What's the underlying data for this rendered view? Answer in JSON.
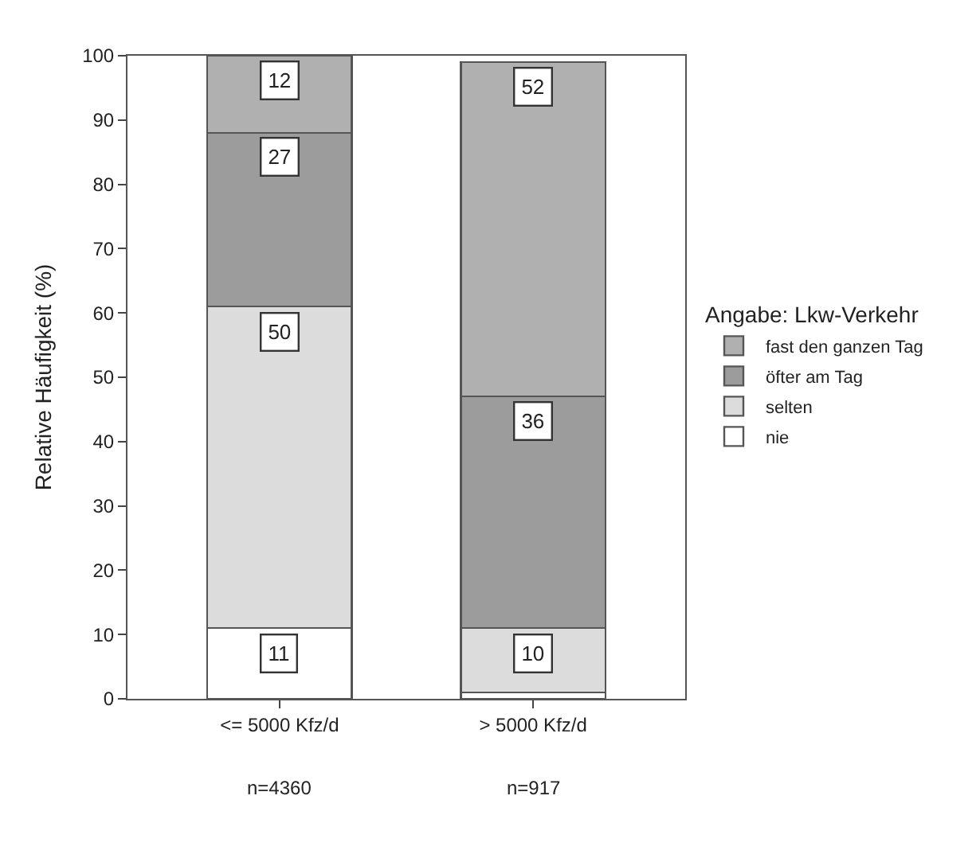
{
  "chart_data": {
    "type": "bar",
    "stacked": true,
    "ylabel": "Relative Häufigkeit (%)",
    "legend_title": "Angabe: Lkw-Verkehr",
    "categories": [
      "<= 5000 Kfz/d",
      "> 5000 Kfz/d"
    ],
    "series": [
      {
        "name": "nie",
        "color": "#ffffff",
        "values": [
          11,
          1
        ],
        "value_labels": [
          "11",
          null
        ]
      },
      {
        "name": "selten",
        "color": "#dcdcdc",
        "values": [
          50,
          10
        ],
        "value_labels": [
          "50",
          "10"
        ]
      },
      {
        "name": "öfter am Tag",
        "color": "#9c9c9c",
        "values": [
          27,
          36
        ],
        "value_labels": [
          "27",
          "36"
        ]
      },
      {
        "name": "fast den ganzen Tag",
        "color": "#b0b0b0",
        "values": [
          12,
          52
        ],
        "value_labels": [
          "12",
          "52"
        ]
      }
    ],
    "ylim": [
      0,
      100
    ],
    "yticks": [
      0,
      10,
      20,
      30,
      40,
      50,
      60,
      70,
      80,
      90,
      100
    ],
    "legend": "right",
    "annotations": [
      "n=4360",
      "n=917"
    ]
  }
}
